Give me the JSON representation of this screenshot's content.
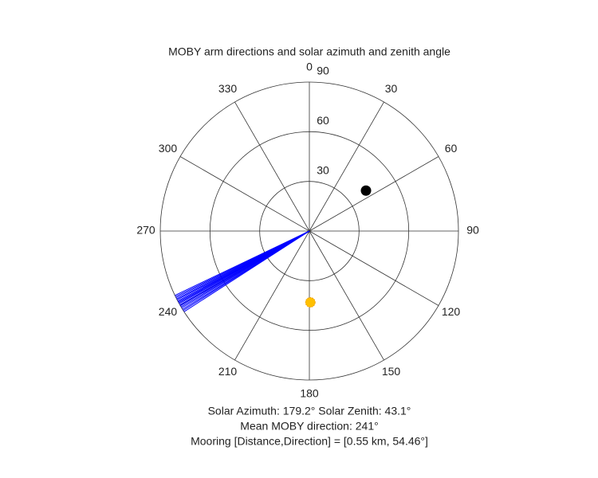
{
  "chart_data": {
    "type": "polar",
    "title": "MOBY arm directions and solar azimuth and zenith angle",
    "xlabel_lines": [
      "Solar Azimuth: 179.2°   Solar Zenith: 43.1°",
      "Mean MOBY direction: 241°",
      "Mooring [Distance,Direction] = [0.55 km, 54.46°]"
    ],
    "rlim": [
      0,
      90
    ],
    "rticks": [
      30,
      60,
      90
    ],
    "thetaticks": [
      0,
      30,
      60,
      90,
      120,
      150,
      180,
      210,
      240,
      270,
      300,
      330
    ],
    "theta_zero": "top",
    "theta_direction": "clockwise",
    "grid": true,
    "series": [
      {
        "style": "line",
        "color": "#0000ff",
        "theta": [
          237.2,
          237.8,
          238.3,
          238.9,
          239.4,
          239.9,
          240.3,
          240.8,
          241.2,
          241.6,
          242.0,
          242.5,
          242.9,
          243.4,
          243.9,
          244.4
        ],
        "r": [
          90,
          90,
          90,
          90,
          90,
          90,
          90,
          90,
          90,
          90,
          90,
          90,
          90,
          90,
          90,
          90
        ]
      },
      {
        "style": "dot",
        "color": "#000000",
        "theta": [
          54.46
        ],
        "r": [
          42
        ]
      },
      {
        "style": "sun",
        "color": "#ffc000",
        "theta": [
          179.2
        ],
        "r": [
          43.1
        ]
      }
    ]
  }
}
